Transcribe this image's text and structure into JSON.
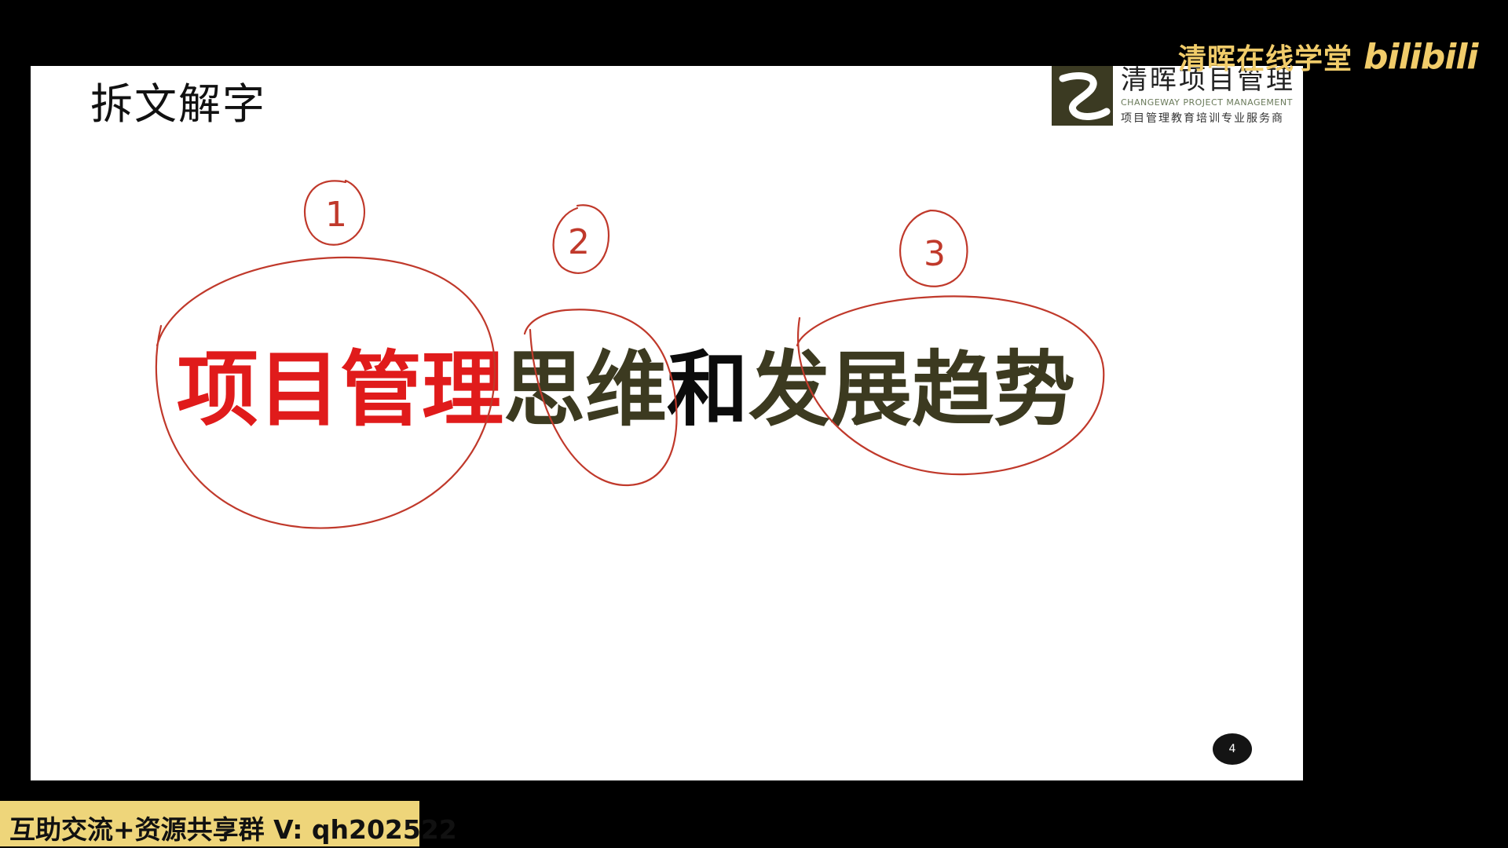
{
  "slide": {
    "title": "拆文解字",
    "headline": {
      "part1": "项目管理",
      "part2": "思维",
      "part3": "和",
      "part4": "发展趋势"
    },
    "annotations": [
      "1",
      "2",
      "3"
    ],
    "page_number": "4"
  },
  "brand_logo": {
    "name": "清晖项目管理",
    "english": "CHANGEWAY PROJECT MANAGEMENT",
    "tagline": "项目管理教育培训专业服务商"
  },
  "watermark": {
    "text": "清晖在线学堂",
    "platform": "bilibili"
  },
  "banner": {
    "text": "互助交流+资源共享群 V: qh202522"
  },
  "colors": {
    "accent_red": "#e01b1b",
    "annotation_red": "#c0392b",
    "watermark_gold": "#f1cc6a",
    "banner_bg": "#eed57a"
  }
}
